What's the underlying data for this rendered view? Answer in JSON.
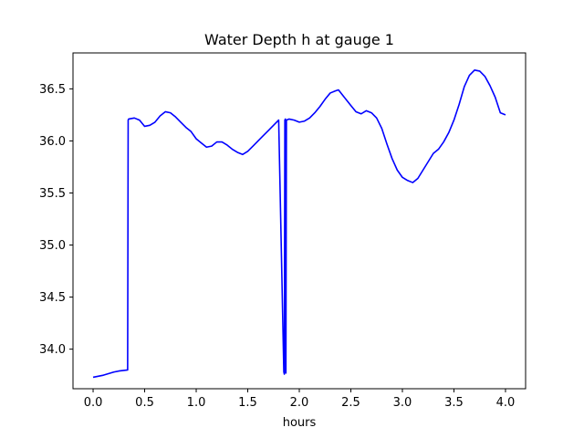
{
  "chart_data": {
    "type": "line",
    "title": "Water Depth h at gauge 1",
    "xlabel": "hours",
    "ylabel": "",
    "xlim": [
      -0.195,
      4.195
    ],
    "ylim": [
      33.62,
      36.845
    ],
    "xticks": [
      0.0,
      0.5,
      1.0,
      1.5,
      2.0,
      2.5,
      3.0,
      3.5,
      4.0
    ],
    "xtick_labels": [
      "0.0",
      "0.5",
      "1.0",
      "1.5",
      "2.0",
      "2.5",
      "3.0",
      "3.5",
      "4.0"
    ],
    "yticks": [
      34.0,
      34.5,
      35.0,
      35.5,
      36.0,
      36.5
    ],
    "ytick_labels": [
      "34.0",
      "34.5",
      "35.0",
      "35.5",
      "36.0",
      "36.5"
    ],
    "grid": false,
    "legend": "none",
    "series": [
      {
        "color": "#0000ff",
        "x": [
          0.0,
          0.1,
          0.2,
          0.25,
          0.335,
          0.34,
          0.345,
          0.4,
          0.45,
          0.5,
          0.55,
          0.6,
          0.65,
          0.7,
          0.75,
          0.8,
          0.85,
          0.9,
          0.95,
          1.0,
          1.05,
          1.1,
          1.15,
          1.2,
          1.25,
          1.3,
          1.35,
          1.4,
          1.45,
          1.5,
          1.55,
          1.6,
          1.65,
          1.7,
          1.75,
          1.8,
          1.85,
          1.855,
          1.86,
          1.865,
          1.87,
          1.875,
          1.9,
          1.95,
          2.0,
          2.05,
          2.1,
          2.15,
          2.2,
          2.25,
          2.3,
          2.35,
          2.38,
          2.42,
          2.5,
          2.55,
          2.6,
          2.65,
          2.7,
          2.75,
          2.8,
          2.85,
          2.9,
          2.95,
          3.0,
          3.05,
          3.1,
          3.15,
          3.2,
          3.25,
          3.3,
          3.35,
          3.4,
          3.45,
          3.5,
          3.55,
          3.6,
          3.65,
          3.7,
          3.75,
          3.8,
          3.85,
          3.9,
          3.95,
          4.0
        ],
        "y": [
          33.73,
          33.75,
          33.78,
          33.79,
          33.8,
          36.2,
          36.21,
          36.22,
          36.2,
          36.14,
          36.15,
          36.18,
          36.24,
          36.28,
          36.27,
          36.23,
          36.18,
          36.13,
          36.09,
          36.02,
          35.98,
          35.94,
          35.95,
          35.99,
          35.99,
          35.96,
          35.92,
          35.89,
          35.87,
          35.9,
          35.95,
          36.0,
          36.05,
          36.1,
          36.15,
          36.2,
          33.78,
          33.76,
          36.2,
          36.21,
          33.77,
          36.2,
          36.21,
          36.2,
          36.18,
          36.19,
          36.22,
          36.27,
          36.33,
          36.4,
          36.46,
          36.48,
          36.49,
          36.44,
          36.34,
          36.28,
          36.26,
          36.29,
          36.27,
          36.22,
          36.12,
          35.97,
          35.83,
          35.72,
          35.65,
          35.62,
          35.6,
          35.64,
          35.72,
          35.8,
          35.88,
          35.92,
          35.99,
          36.08,
          36.2,
          36.35,
          36.52,
          36.63,
          36.68,
          36.67,
          36.62,
          36.53,
          36.42,
          36.27,
          36.25
        ]
      }
    ]
  }
}
